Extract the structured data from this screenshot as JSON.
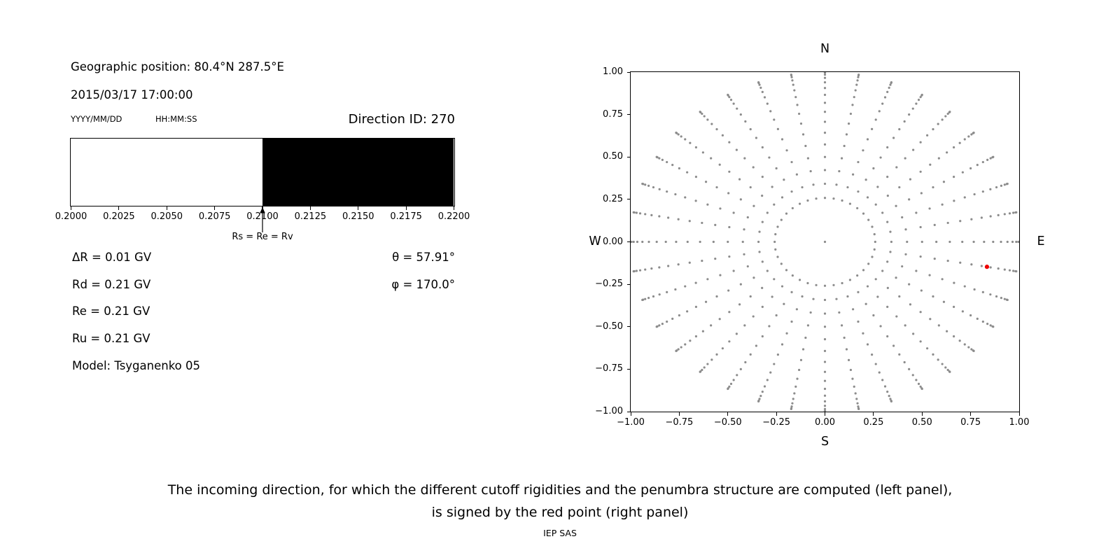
{
  "colors": {
    "background": "#ffffff",
    "text": "#000000",
    "grid_dot": "#8c8c8c",
    "highlight_red": "#ee0000"
  },
  "left_panel": {
    "geographic_position": "Geographic position: 80.4°N 287.5°E",
    "datetime": "2015/03/17 17:00:00",
    "date_format_label": "YYYY/MM/DD",
    "time_format_label": "HH:MM:SS",
    "direction_id": "Direction ID: 270",
    "info_left": [
      "ΔR = 0.01 GV",
      "Rd = 0.21 GV",
      "Re = 0.21 GV",
      "Ru = 0.21 GV",
      "Model: Tsyganenko 05"
    ],
    "info_right": [
      "θ = 57.91°",
      "φ = 170.0°"
    ]
  },
  "caption": {
    "line1": "The incoming direction, for which the different cutoff rigidities and the penumbra structure are computed (left panel),",
    "line2": "is signed by the red point (right panel)",
    "credit": "IEP SAS"
  },
  "chart_data": [
    {
      "type": "bar",
      "name": "penumbra-structure-bar",
      "orientation": "horizontal",
      "xlim": [
        0.2,
        0.22
      ],
      "x_ticks": [
        {
          "value": 0.2,
          "label": "0.2000"
        },
        {
          "value": 0.2025,
          "label": "0.2025"
        },
        {
          "value": 0.205,
          "label": "0.2050"
        },
        {
          "value": 0.2075,
          "label": "0.2075"
        },
        {
          "value": 0.21,
          "label": "0.2100"
        },
        {
          "value": 0.2125,
          "label": "0.2125"
        },
        {
          "value": 0.215,
          "label": "0.2150"
        },
        {
          "value": 0.2175,
          "label": "0.2175"
        },
        {
          "value": 0.22,
          "label": "0.2200"
        }
      ],
      "segments": [
        {
          "from": 0.2,
          "to": 0.21,
          "color": "#ffffff"
        },
        {
          "from": 0.21,
          "to": 0.22,
          "color": "#000000"
        }
      ],
      "marker": {
        "x": 0.21,
        "label": "Rs = Re = Rv"
      }
    },
    {
      "type": "scatter",
      "name": "incoming-direction-map",
      "xlim": [
        -1.0,
        1.0
      ],
      "ylim": [
        -1.0,
        1.0
      ],
      "grid": false,
      "x_ticks": [
        {
          "value": -1.0,
          "label": "−1.00"
        },
        {
          "value": -0.75,
          "label": "−0.75"
        },
        {
          "value": -0.5,
          "label": "−0.50"
        },
        {
          "value": -0.25,
          "label": "−0.25"
        },
        {
          "value": 0.0,
          "label": "0.00"
        },
        {
          "value": 0.25,
          "label": "0.25"
        },
        {
          "value": 0.5,
          "label": "0.50"
        },
        {
          "value": 0.75,
          "label": "0.75"
        },
        {
          "value": 1.0,
          "label": "1.00"
        }
      ],
      "y_ticks": [
        {
          "value": 1.0,
          "label": "1.00"
        },
        {
          "value": 0.75,
          "label": "0.75"
        },
        {
          "value": 0.5,
          "label": "0.50"
        },
        {
          "value": 0.25,
          "label": "0.25"
        },
        {
          "value": 0.0,
          "label": "0.00"
        },
        {
          "value": -0.25,
          "label": "−0.25"
        },
        {
          "value": -0.5,
          "label": "−0.50"
        },
        {
          "value": -0.75,
          "label": "−0.75"
        },
        {
          "value": -1.0,
          "label": "−1.00"
        }
      ],
      "compass": {
        "north": "N",
        "south": "S",
        "east": "E",
        "west": "W"
      },
      "grid_points": {
        "color": "#8c8c8c",
        "azimuth_start_deg": 0,
        "azimuth_step_deg": 10,
        "azimuth_count": 36,
        "zenith_min_deg": 15,
        "zenith_max_deg": 90,
        "zenith_step_deg": 5,
        "radius_rule": "sin(zenith)",
        "include_center_point": true
      },
      "red_point": {
        "x": 0.834,
        "y": -0.147,
        "theta_deg": 57.91,
        "phi_deg": 170.0,
        "color": "#ee0000"
      }
    }
  ]
}
